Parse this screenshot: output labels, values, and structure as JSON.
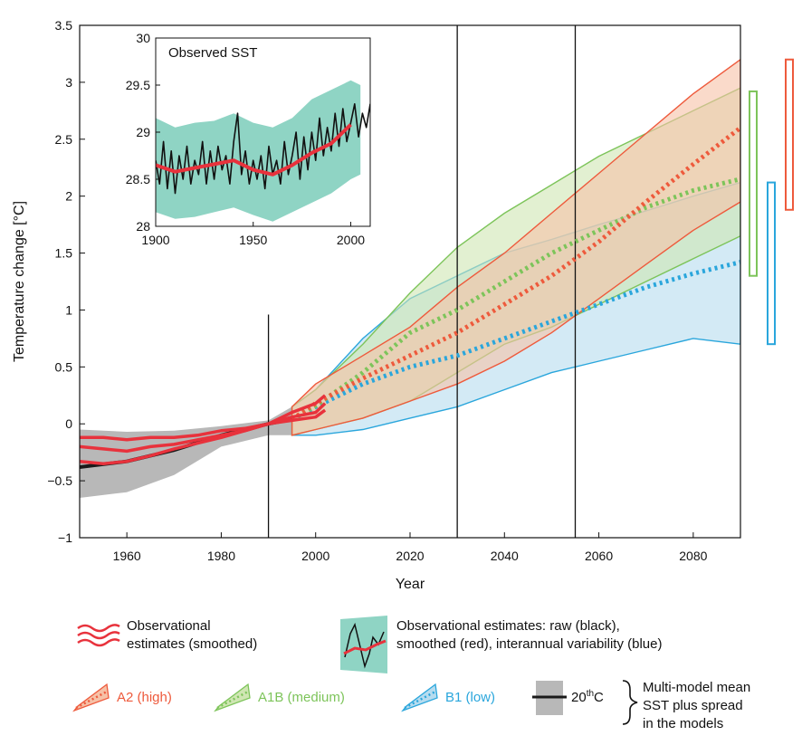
{
  "chart_data": {
    "type": "line",
    "title": "",
    "xlabel": "Year",
    "ylabel": "Temperature change [°C]",
    "xlim": [
      1950,
      2090
    ],
    "ylim": [
      -1,
      3.5
    ],
    "x_ticks": [
      1960,
      1980,
      2000,
      2020,
      2040,
      2060,
      2080
    ],
    "x_tick_labels": [
      "1960",
      "1980",
      "2000",
      "2020",
      "2040",
      "2060",
      "2080"
    ],
    "y_ticks": [
      -1,
      -0.5,
      0,
      0.5,
      1,
      1.5,
      2,
      2.5,
      3,
      3.5
    ],
    "y_tick_labels": [
      "−1",
      "−0.5",
      "0",
      "0.5",
      "1",
      "1.5",
      "2",
      "2.5",
      "3",
      "3.5"
    ],
    "vertical_lines_years": [
      1990,
      2030,
      2055
    ],
    "colors": {
      "a2": "#ee5a3c",
      "a2_fill": "#f6c1a7",
      "a1b": "#7dc45a",
      "a1b_fill": "#cfe6b3",
      "b1": "#2aa6dc",
      "b1_fill": "#b6dcef",
      "c20": "#1a1a1a",
      "c20_fill": "#b8b8b8",
      "obs": "#e8323c",
      "teal": "#8fd4c4"
    },
    "model_series": [
      {
        "key": "c20",
        "x": [
          1950,
          1960,
          1970,
          1980,
          1990,
          1995
        ],
        "mean": [
          -0.38,
          -0.33,
          -0.23,
          -0.1,
          0.0,
          0.04
        ],
        "upper": [
          -0.05,
          -0.07,
          -0.06,
          -0.02,
          0.03,
          0.15
        ],
        "lower": [
          -0.65,
          -0.6,
          -0.45,
          -0.2,
          -0.1,
          -0.1
        ]
      },
      {
        "key": "a2",
        "x": [
          1995,
          2000,
          2010,
          2020,
          2030,
          2040,
          2050,
          2060,
          2070,
          2080,
          2090
        ],
        "mean": [
          0.04,
          0.18,
          0.4,
          0.6,
          0.8,
          1.05,
          1.3,
          1.6,
          1.95,
          2.28,
          2.6
        ],
        "upper": [
          0.15,
          0.35,
          0.6,
          0.85,
          1.2,
          1.5,
          1.85,
          2.2,
          2.55,
          2.9,
          3.2
        ],
        "lower": [
          -0.1,
          -0.05,
          0.05,
          0.2,
          0.35,
          0.55,
          0.8,
          1.1,
          1.4,
          1.7,
          1.95
        ]
      },
      {
        "key": "a1b",
        "x": [
          1995,
          2000,
          2010,
          2020,
          2030,
          2040,
          2050,
          2060,
          2070,
          2080,
          2090
        ],
        "mean": [
          0.04,
          0.16,
          0.45,
          0.8,
          1.0,
          1.25,
          1.5,
          1.7,
          1.9,
          2.05,
          2.15
        ],
        "upper": [
          0.15,
          0.3,
          0.7,
          1.15,
          1.55,
          1.85,
          2.1,
          2.35,
          2.55,
          2.75,
          2.95
        ],
        "lower": [
          -0.1,
          -0.05,
          0.05,
          0.2,
          0.45,
          0.7,
          0.85,
          1.05,
          1.25,
          1.45,
          1.65
        ]
      },
      {
        "key": "b1",
        "x": [
          1995,
          2000,
          2010,
          2020,
          2030,
          2040,
          2050,
          2060,
          2070,
          2080,
          2090
        ],
        "mean": [
          0.04,
          0.15,
          0.35,
          0.5,
          0.6,
          0.75,
          0.9,
          1.05,
          1.2,
          1.32,
          1.42
        ],
        "upper": [
          0.15,
          0.3,
          0.75,
          1.1,
          1.3,
          1.5,
          1.62,
          1.75,
          1.87,
          2.0,
          2.12
        ],
        "lower": [
          -0.1,
          -0.1,
          -0.05,
          0.05,
          0.15,
          0.3,
          0.45,
          0.55,
          0.65,
          0.75,
          0.7
        ]
      }
    ],
    "observational_smoothed": {
      "x": [
        1950,
        1955,
        1960,
        1965,
        1970,
        1975,
        1980,
        1985,
        1990,
        1995,
        2000,
        2002
      ],
      "series": [
        [
          -0.12,
          -0.12,
          -0.14,
          -0.12,
          -0.12,
          -0.1,
          -0.06,
          -0.04,
          0.0,
          0.1,
          0.18,
          0.25
        ],
        [
          -0.2,
          -0.22,
          -0.24,
          -0.2,
          -0.18,
          -0.14,
          -0.1,
          -0.06,
          0.0,
          0.06,
          0.1,
          0.18
        ],
        [
          -0.33,
          -0.35,
          -0.33,
          -0.28,
          -0.22,
          -0.17,
          -0.12,
          -0.06,
          0.0,
          0.03,
          0.06,
          0.12
        ]
      ]
    },
    "range_bars": [
      {
        "key": "b1",
        "lower": 0.7,
        "upper": 2.12
      },
      {
        "key": "a1b",
        "lower": 1.3,
        "upper": 2.92
      },
      {
        "key": "a2",
        "lower": 1.88,
        "upper": 3.2
      }
    ],
    "inset": {
      "title": "Observed SST",
      "xlim": [
        1900,
        2010
      ],
      "ylim": [
        28,
        30
      ],
      "x_ticks": [
        1900,
        1950,
        2000
      ],
      "x_tick_labels": [
        "1900",
        "1950",
        "2000"
      ],
      "y_ticks": [
        28,
        28.5,
        29,
        29.5,
        30
      ],
      "y_tick_labels": [
        "28",
        "28.5",
        "29",
        "29.5",
        "30"
      ],
      "smoothed": {
        "x": [
          1900,
          1910,
          1920,
          1930,
          1940,
          1950,
          1960,
          1970,
          1980,
          1990,
          2000
        ],
        "y": [
          28.65,
          28.58,
          28.62,
          28.66,
          28.7,
          28.6,
          28.55,
          28.65,
          28.78,
          28.88,
          29.08
        ]
      },
      "variability_band": {
        "x": [
          1900,
          1910,
          1920,
          1930,
          1940,
          1950,
          1960,
          1970,
          1980,
          1990,
          2000,
          2005
        ],
        "upper": [
          29.15,
          29.05,
          29.1,
          29.12,
          29.2,
          29.1,
          29.05,
          29.15,
          29.35,
          29.45,
          29.55,
          29.5
        ],
        "lower": [
          28.15,
          28.08,
          28.1,
          28.15,
          28.2,
          28.12,
          28.05,
          28.15,
          28.25,
          28.35,
          28.5,
          28.55
        ]
      },
      "raw": {
        "x": [
          1900,
          1902,
          1904,
          1906,
          1908,
          1910,
          1912,
          1914,
          1916,
          1918,
          1920,
          1922,
          1924,
          1926,
          1928,
          1930,
          1932,
          1934,
          1936,
          1938,
          1940,
          1942,
          1944,
          1946,
          1948,
          1950,
          1952,
          1954,
          1956,
          1958,
          1960,
          1962,
          1964,
          1966,
          1968,
          1970,
          1972,
          1974,
          1976,
          1978,
          1980,
          1982,
          1984,
          1986,
          1988,
          1990,
          1992,
          1994,
          1996,
          1998,
          2000,
          2002,
          2004,
          2006,
          2008,
          2010
        ],
        "y": [
          28.7,
          28.45,
          28.9,
          28.4,
          28.8,
          28.35,
          28.75,
          28.5,
          28.85,
          28.45,
          28.7,
          28.55,
          28.9,
          28.45,
          28.8,
          28.5,
          28.85,
          28.6,
          28.75,
          28.45,
          28.9,
          29.2,
          28.55,
          28.8,
          28.45,
          28.7,
          28.5,
          28.75,
          28.4,
          28.85,
          28.55,
          28.7,
          28.45,
          28.9,
          28.55,
          28.75,
          29.0,
          28.5,
          28.95,
          28.6,
          29.0,
          28.7,
          29.15,
          28.75,
          29.05,
          28.8,
          29.2,
          28.85,
          29.25,
          28.9,
          29.1,
          29.3,
          28.95,
          29.2,
          29.05,
          29.3
        ]
      }
    },
    "legend": {
      "obs_smoothed": "Observational estimates (smoothed)",
      "obs_raw": "Observational estimates: raw (black), smoothed (red), interannual variability (blue)",
      "a2": "A2 (high)",
      "a1b": "A1B (medium)",
      "b1": "B1 (low)",
      "c20": "20thC",
      "multi_model": "Multi-model mean SST plus spread in the models"
    }
  }
}
